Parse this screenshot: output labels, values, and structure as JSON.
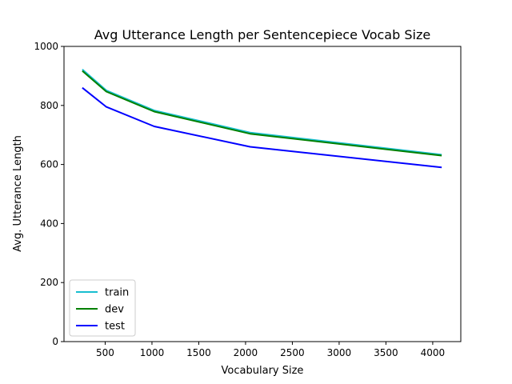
{
  "chart_data": {
    "type": "line",
    "title": "Avg Utterance Length per Sentencepiece Vocab Size",
    "xlabel": "Vocabulary Size",
    "ylabel": "Avg. Utterance Length",
    "xlim": [
      60,
      4300
    ],
    "ylim": [
      0,
      1000
    ],
    "xticks": [
      500,
      1000,
      1500,
      2000,
      2500,
      3000,
      3500,
      4000
    ],
    "yticks": [
      0,
      200,
      400,
      600,
      800,
      1000
    ],
    "grid": false,
    "legend_position": "lower-left",
    "x": [
      256,
      512,
      1024,
      2048,
      4096
    ],
    "series": [
      {
        "name": "train",
        "color": "#17becf",
        "values": [
          922,
          851,
          783,
          708,
          633
        ]
      },
      {
        "name": "dev",
        "color": "#008000",
        "values": [
          917,
          847,
          779,
          704,
          630
        ]
      },
      {
        "name": "test",
        "color": "#0000ff",
        "values": [
          860,
          795,
          729,
          660,
          590
        ]
      }
    ]
  }
}
